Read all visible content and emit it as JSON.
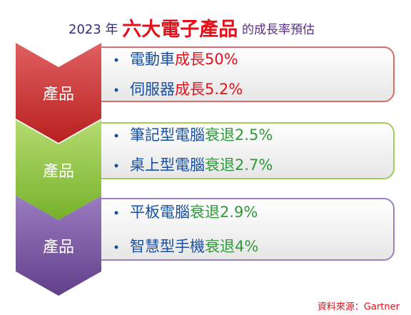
{
  "title": {
    "year": "2023 年",
    "highlight": "六大電子產品",
    "rest": "的成長率預估"
  },
  "groups": [
    {
      "label": "產品",
      "items": [
        {
          "name": "電動車",
          "trend": "成長50%"
        },
        {
          "name": "伺服器",
          "trend": "成長5.2%"
        }
      ]
    },
    {
      "label": "產品",
      "items": [
        {
          "name": "筆記型電腦",
          "trend": "衰退2.5%"
        },
        {
          "name": "桌上型電腦",
          "trend": "衰退2.7%"
        }
      ]
    },
    {
      "label": "產品",
      "items": [
        {
          "name": "平板電腦",
          "trend": "衰退2.9%"
        },
        {
          "name": "智慧型手機",
          "trend": "衰退4%"
        }
      ]
    }
  ],
  "source": "資料來源：Gartner"
}
